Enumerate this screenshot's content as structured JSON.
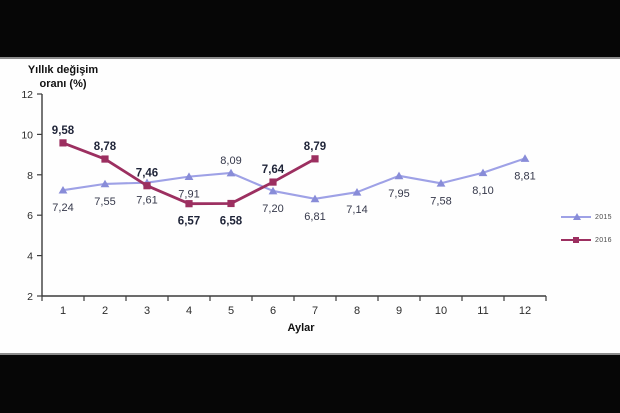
{
  "chart": {
    "y_axis_title_line1": "Yıllık değişim",
    "y_axis_title_line2": "oranı (%)",
    "x_axis_title": "Aylar"
  },
  "colors": {
    "series_2015_line": "#9EA1E6",
    "series_2015_marker": "#888CD8",
    "series_2016": "#9C2F60",
    "data_label_2015": "#35384a",
    "data_label_2016": "#1f2438",
    "axis": "#3c3c3c",
    "tick_text": "#2b2b2b",
    "letterbox": "#060606"
  },
  "chart_data": {
    "type": "line",
    "title": "",
    "xlabel": "Aylar",
    "ylabel": "Yıllık değişim oranı (%)",
    "categories": [
      "1",
      "2",
      "3",
      "4",
      "5",
      "6",
      "7",
      "8",
      "9",
      "10",
      "11",
      "12"
    ],
    "ylim": [
      2,
      12
    ],
    "yticks": [
      "2",
      "4",
      "6",
      "8",
      "10",
      "12"
    ],
    "grid": false,
    "legend_position": "right",
    "series": [
      {
        "name": "2015",
        "marker": "triangle",
        "values": [
          7.24,
          7.55,
          7.61,
          7.91,
          8.09,
          7.2,
          6.81,
          7.14,
          7.95,
          7.58,
          8.1,
          8.81
        ],
        "labels": [
          "7,24",
          "7,55",
          "7,61",
          "7,91",
          "8,09",
          "7,20",
          "6,81",
          "7,14",
          "7,95",
          "7,58",
          "8,10",
          "8,81"
        ],
        "label_side": [
          "below",
          "below",
          "below",
          "below",
          "above",
          "below",
          "below",
          "below",
          "below",
          "below",
          "below",
          "below"
        ]
      },
      {
        "name": "2016",
        "marker": "square",
        "values": [
          9.58,
          8.78,
          7.46,
          6.57,
          6.58,
          7.64,
          8.79
        ],
        "labels": [
          "9,58",
          "8,78",
          "7,46",
          "6,57",
          "6,58",
          "7,64",
          "8,79"
        ],
        "label_side": [
          "above",
          "above",
          "above",
          "below",
          "below",
          "above",
          "above"
        ]
      }
    ]
  }
}
